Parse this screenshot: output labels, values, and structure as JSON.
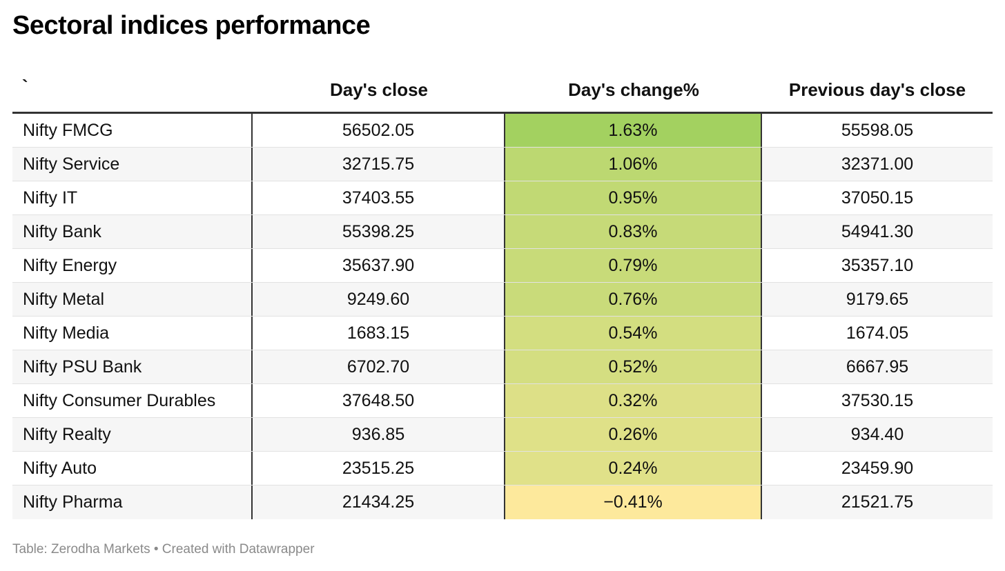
{
  "title": "Sectoral indices performance",
  "table": {
    "headers": [
      "`",
      "Day's close",
      "Day's change%",
      "Previous day's close"
    ],
    "rows": [
      {
        "name": "Nifty FMCG",
        "close": "56502.05",
        "change": "1.63%",
        "change_value": 1.63,
        "prev": "55598.05"
      },
      {
        "name": "Nifty Service",
        "close": "32715.75",
        "change": "1.06%",
        "change_value": 1.06,
        "prev": "32371.00"
      },
      {
        "name": "Nifty IT",
        "close": "37403.55",
        "change": "0.95%",
        "change_value": 0.95,
        "prev": "37050.15"
      },
      {
        "name": "Nifty Bank",
        "close": "55398.25",
        "change": "0.83%",
        "change_value": 0.83,
        "prev": "54941.30"
      },
      {
        "name": "Nifty Energy",
        "close": "35637.90",
        "change": "0.79%",
        "change_value": 0.79,
        "prev": "35357.10"
      },
      {
        "name": "Nifty Metal",
        "close": "9249.60",
        "change": "0.76%",
        "change_value": 0.76,
        "prev": "9179.65"
      },
      {
        "name": "Nifty Media",
        "close": "1683.15",
        "change": "0.54%",
        "change_value": 0.54,
        "prev": "1674.05"
      },
      {
        "name": "Nifty PSU Bank",
        "close": "6702.70",
        "change": "0.52%",
        "change_value": 0.52,
        "prev": "6667.95"
      },
      {
        "name": "Nifty Consumer Durables",
        "close": "37648.50",
        "change": "0.32%",
        "change_value": 0.32,
        "prev": "37530.15"
      },
      {
        "name": "Nifty Realty",
        "close": "936.85",
        "change": "0.26%",
        "change_value": 0.26,
        "prev": "934.40"
      },
      {
        "name": "Nifty Auto",
        "close": "23515.25",
        "change": "0.24%",
        "change_value": 0.24,
        "prev": "23459.90"
      },
      {
        "name": "Nifty Pharma",
        "close": "21434.25",
        "change": "−0.41%",
        "change_value": -0.41,
        "prev": "21521.75"
      }
    ]
  },
  "colors": {
    "scale_high": "#a3d160",
    "scale_low": "#fde99c"
  },
  "footer": "Table: Zerodha Markets • Created with Datawrapper",
  "chart_data": {
    "type": "table",
    "title": "Sectoral indices performance",
    "columns": [
      "`",
      "Day's close",
      "Day's change%",
      "Previous day's close"
    ],
    "rows": [
      [
        "Nifty FMCG",
        56502.05,
        1.63,
        55598.05
      ],
      [
        "Nifty Service",
        32715.75,
        1.06,
        32371.0
      ],
      [
        "Nifty IT",
        37403.55,
        0.95,
        37050.15
      ],
      [
        "Nifty Bank",
        55398.25,
        0.83,
        54941.3
      ],
      [
        "Nifty Energy",
        35637.9,
        0.79,
        35357.1
      ],
      [
        "Nifty Metal",
        9249.6,
        0.76,
        9179.65
      ],
      [
        "Nifty Media",
        1683.15,
        0.54,
        1674.05
      ],
      [
        "Nifty PSU Bank",
        6702.7,
        0.52,
        6667.95
      ],
      [
        "Nifty Consumer Durables",
        37648.5,
        0.32,
        37530.15
      ],
      [
        "Nifty Realty",
        936.85,
        0.26,
        934.4
      ],
      [
        "Nifty Auto",
        23515.25,
        0.24,
        23459.9
      ],
      [
        "Nifty Pharma",
        21434.25,
        -0.41,
        21521.75
      ]
    ]
  }
}
